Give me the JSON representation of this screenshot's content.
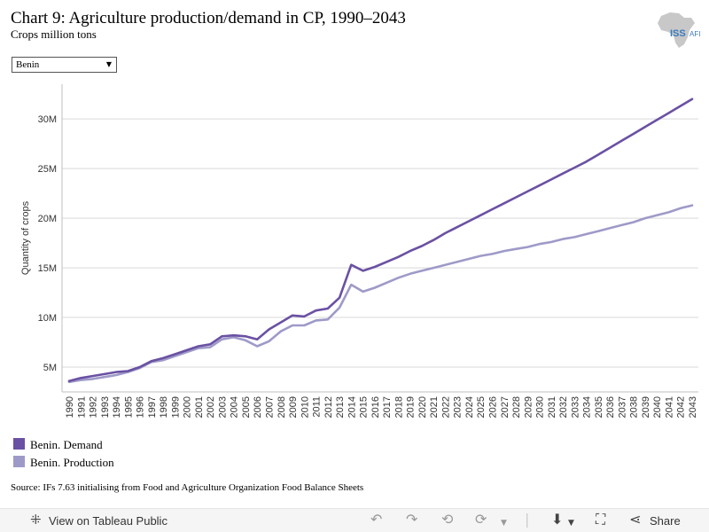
{
  "header": {
    "title": "Chart 9: Agriculture production/demand in CP, 1990–2043",
    "subtitle": "Crops million tons",
    "logo_text": "ISS",
    "logo_text_suffix": "AFI",
    "logo_color": "#3a7bbf"
  },
  "filter": {
    "selected": "Benin",
    "arrow_icon": "chevron-down-icon"
  },
  "chart_data": {
    "type": "line",
    "title": "Chart 9: Agriculture production/demand in CP, 1990–2043",
    "ylabel": "Quantity of crops",
    "xlabel": "",
    "x": [
      1990,
      1991,
      1992,
      1993,
      1994,
      1995,
      1996,
      1997,
      1998,
      1999,
      2000,
      2001,
      2002,
      2003,
      2004,
      2005,
      2006,
      2007,
      2008,
      2009,
      2010,
      2011,
      2012,
      2013,
      2014,
      2015,
      2016,
      2017,
      2018,
      2019,
      2020,
      2021,
      2022,
      2023,
      2024,
      2025,
      2026,
      2027,
      2028,
      2029,
      2030,
      2031,
      2032,
      2033,
      2034,
      2035,
      2036,
      2037,
      2038,
      2039,
      2040,
      2041,
      2042,
      2043
    ],
    "x_tick_labels": [
      "1990",
      "1991",
      "1992",
      "1993",
      "1994",
      "1995",
      "1996",
      "1997",
      "1998",
      "1999",
      "2000",
      "2001",
      "2002",
      "2003",
      "2004",
      "2005",
      "2006",
      "2007",
      "2008",
      "2009",
      "2010",
      "2011",
      "2012",
      "2013",
      "2014",
      "2015",
      "2016",
      "2017",
      "2018",
      "2019",
      "2020",
      "2021",
      "2022",
      "2023",
      "2024",
      "2025",
      "2026",
      "2027",
      "2028",
      "2029",
      "2030",
      "2031",
      "2032",
      "2033",
      "2034",
      "2035",
      "2036",
      "2037",
      "2038",
      "2039",
      "2040",
      "2041",
      "2042",
      "2043"
    ],
    "y_ticks": [
      5000000,
      10000000,
      15000000,
      20000000,
      25000000,
      30000000
    ],
    "y_tick_labels": [
      "5M",
      "10M",
      "15M",
      "20M",
      "25M",
      "30M"
    ],
    "ylim": [
      2500000,
      33500000
    ],
    "grid": true,
    "legend_position": "bottom-left",
    "series": [
      {
        "name": "Benin. Demand",
        "color": "#6a51a3",
        "values": [
          3.6,
          3.9,
          4.1,
          4.3,
          4.5,
          4.6,
          5.0,
          5.6,
          5.9,
          6.3,
          6.7,
          7.1,
          7.3,
          8.1,
          8.2,
          8.1,
          7.8,
          8.8,
          9.5,
          10.2,
          10.1,
          10.7,
          10.9,
          12.0,
          15.3,
          14.7,
          15.1,
          15.6,
          16.1,
          16.7,
          17.2,
          17.8,
          18.5,
          19.1,
          19.7,
          20.3,
          20.9,
          21.5,
          22.1,
          22.7,
          23.3,
          23.9,
          24.5,
          25.1,
          25.7,
          26.4,
          27.1,
          27.8,
          28.5,
          29.2,
          29.9,
          30.6,
          31.3,
          32.0
        ]
      },
      {
        "name": "Benin. Production",
        "color": "#9e9ac8",
        "values": [
          3.5,
          3.7,
          3.8,
          4.0,
          4.2,
          4.5,
          4.9,
          5.5,
          5.7,
          6.1,
          6.5,
          6.9,
          7.0,
          7.8,
          8.0,
          7.7,
          7.1,
          7.6,
          8.6,
          9.2,
          9.2,
          9.7,
          9.8,
          11.0,
          13.3,
          12.6,
          13.0,
          13.5,
          14.0,
          14.4,
          14.7,
          15.0,
          15.3,
          15.6,
          15.9,
          16.2,
          16.4,
          16.7,
          16.9,
          17.1,
          17.4,
          17.6,
          17.9,
          18.1,
          18.4,
          18.7,
          19.0,
          19.3,
          19.6,
          20.0,
          20.3,
          20.6,
          21.0,
          21.3
        ]
      }
    ]
  },
  "legend": {
    "items": [
      {
        "label": "Benin. Demand",
        "color": "#6a51a3"
      },
      {
        "label": "Benin. Production",
        "color": "#9e9ac8"
      }
    ]
  },
  "footer": {
    "source": "Source: IFs 7.63 initialising from Food and Agriculture Organization Food Balance Sheets"
  },
  "toolbar": {
    "view_label": "View on Tableau Public",
    "view_icon": "tableau-icon",
    "share_label": "Share",
    "icons": [
      "undo-icon",
      "redo-icon",
      "revert-icon",
      "refresh-icon",
      "pause-icon",
      "download-icon",
      "fullscreen-icon",
      "share-icon"
    ]
  }
}
